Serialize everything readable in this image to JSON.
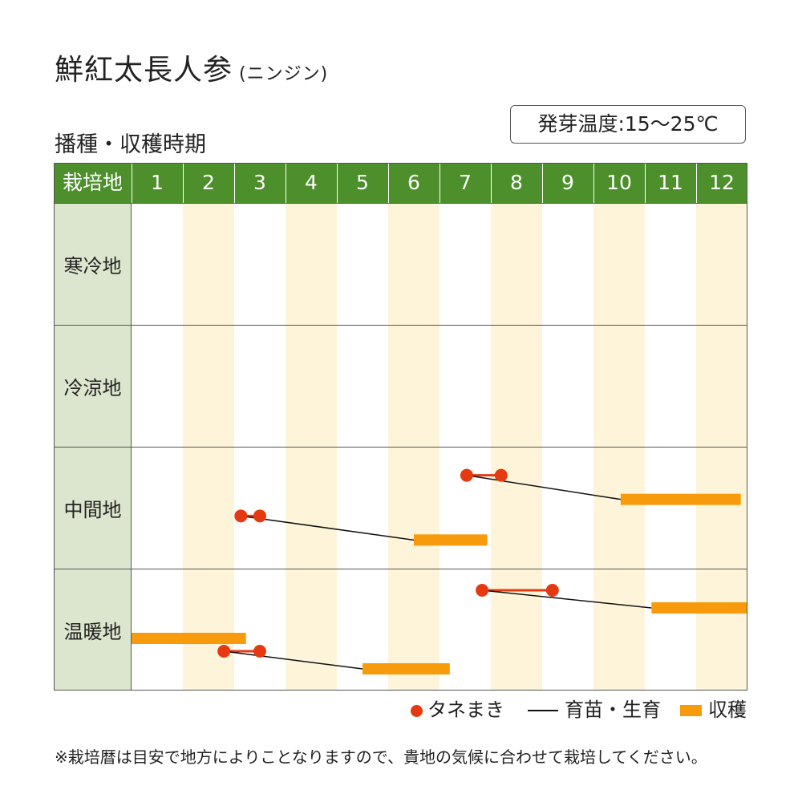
{
  "title": "鮮紅太長人参",
  "subtitle": "(ニンジン)",
  "temperature": "発芽温度:15〜25℃",
  "section_title": "播種・収穫時期",
  "legend": {
    "sowing": "タネまき",
    "growing": "育苗・生育",
    "harvest": "収穫"
  },
  "note": "※栽培暦は目安で地方によりことなりますので、貴地の気候に合わせて栽培してください。",
  "colors": {
    "header": "#4d8f2b",
    "region_bg": "#dce5cd",
    "stripe": "#fdf4d9",
    "sowing": "#e53912",
    "harvest": "#f79a0b",
    "growing": "#111111"
  },
  "chart_data": {
    "type": "gantt",
    "region_header": "栽培地",
    "months": [
      "1",
      "2",
      "3",
      "4",
      "5",
      "6",
      "7",
      "8",
      "9",
      "10",
      "11",
      "12"
    ],
    "regions": [
      {
        "name": "寒冷地",
        "schedules": []
      },
      {
        "name": "冷涼地",
        "schedules": []
      },
      {
        "name": "中間地",
        "schedules": [
          {
            "sowing": [
              7.53,
              8.2
            ],
            "growing_to": 10.53,
            "harvest": [
              10.53,
              12.87
            ]
          },
          {
            "sowing": [
              3.13,
              3.5
            ],
            "growing_to": 6.5,
            "harvest": [
              6.5,
              7.93
            ]
          }
        ]
      },
      {
        "name": "温暖地",
        "schedules": [
          {
            "sowing": [
              7.83,
              9.2
            ],
            "growing_to": 11.13,
            "harvest": [
              11.13,
              13.0
            ]
          },
          {
            "sowing": null,
            "growing_to": null,
            "harvest": [
              1.0,
              3.23
            ]
          },
          {
            "sowing": [
              2.8,
              3.5
            ],
            "growing_to": 5.5,
            "harvest": [
              5.5,
              7.2
            ]
          }
        ]
      }
    ]
  }
}
